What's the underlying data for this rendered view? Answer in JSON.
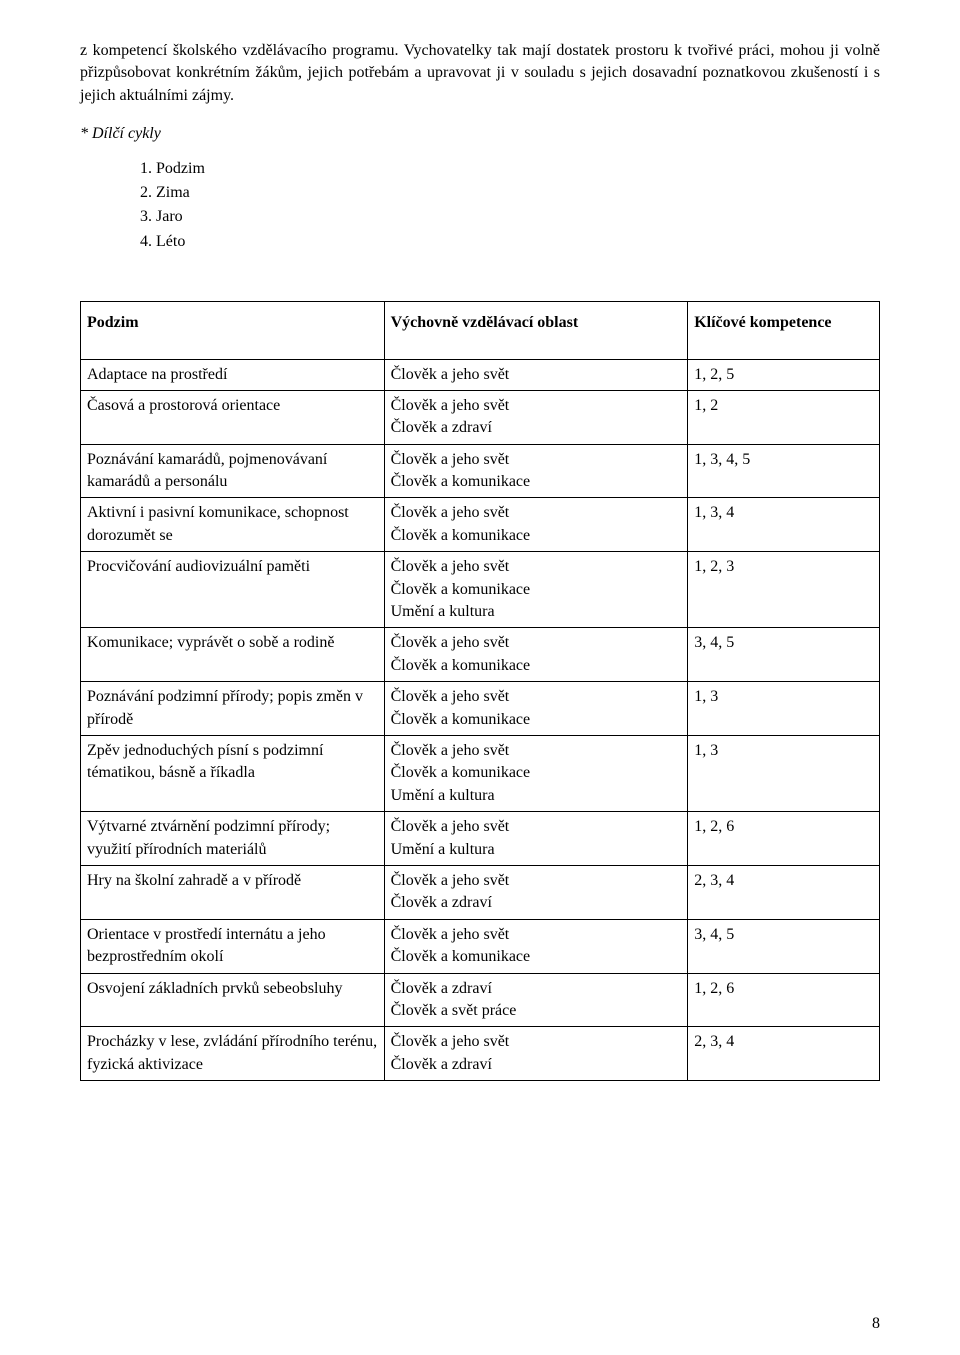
{
  "intro_text": "z kompetencí školského vzdělávacího programu. Vychovatelky tak mají dostatek prostoru k tvořivé práci, mohou ji volně přizpůsobovat konkrétním žákům, jejich potřebám a upravovat ji v souladu s jejich dosavadní poznatkovou zkušeností i s jejich aktuálními zájmy.",
  "subheading": "* Dílčí cykly",
  "cycles": [
    {
      "num": "1.",
      "label": "Podzim"
    },
    {
      "num": "2.",
      "label": "Zima"
    },
    {
      "num": "3.",
      "label": "Jaro"
    },
    {
      "num": "4.",
      "label": "Léto"
    }
  ],
  "table": {
    "header": {
      "col1": "Podzim",
      "col2": "Výchovně vzdělávací oblast",
      "col3": "Klíčové kompetence"
    },
    "rows": [
      {
        "c1": [
          "Adaptace na prostředí"
        ],
        "c2": [
          "Člověk a jeho svět"
        ],
        "c3": "1, 2, 5"
      },
      {
        "c1": [
          "Časová a prostorová orientace"
        ],
        "c2": [
          "Člověk a jeho svět",
          "Člověk a zdraví"
        ],
        "c3": "1, 2"
      },
      {
        "c1": [
          "Poznávání kamarádů, pojmenovávaní kamarádů a personálu"
        ],
        "c2": [
          "Člověk a jeho svět",
          "Člověk a komunikace"
        ],
        "c3": "1, 3, 4, 5"
      },
      {
        "c1": [
          "Aktivní i pasivní komunikace, schopnost dorozumět se"
        ],
        "c2": [
          "Člověk a jeho svět",
          "Člověk a komunikace"
        ],
        "c3": "1, 3, 4"
      },
      {
        "c1": [
          "Procvičování audiovizuální paměti"
        ],
        "c2": [
          "Člověk a jeho svět",
          "Člověk a komunikace",
          "Umění a kultura"
        ],
        "c3": "1, 2, 3"
      },
      {
        "c1": [
          "Komunikace; vyprávět o sobě a rodině"
        ],
        "c2": [
          "Člověk a jeho svět",
          "Člověk a komunikace"
        ],
        "c3": "3, 4, 5"
      },
      {
        "c1": [
          "Poznávání podzimní přírody; popis změn v přírodě"
        ],
        "c2": [
          "Člověk a jeho svět",
          "Člověk a komunikace"
        ],
        "c3": "1, 3"
      },
      {
        "c1": [
          "Zpěv jednoduchých písní s podzimní tématikou, básně a říkadla"
        ],
        "c2": [
          "Člověk a jeho svět",
          "Člověk a komunikace",
          "Umění a kultura"
        ],
        "c3": "1, 3"
      },
      {
        "c1": [
          "Výtvarné ztvárnění podzimní přírody; využití přírodních materiálů"
        ],
        "c2": [
          "Člověk a jeho svět",
          "Umění a kultura"
        ],
        "c3": "1, 2, 6"
      },
      {
        "c1": [
          "Hry na školní zahradě a v přírodě"
        ],
        "c2": [
          "Člověk a jeho svět",
          "Člověk a zdraví"
        ],
        "c3": "2, 3, 4"
      },
      {
        "c1": [
          "Orientace v prostředí internátu a jeho bezprostředním okolí"
        ],
        "c2": [
          "Člověk a jeho svět",
          "Člověk a komunikace"
        ],
        "c3": "3, 4, 5"
      },
      {
        "c1": [
          "Osvojení základních prvků sebeobsluhy"
        ],
        "c2": [
          "Člověk a zdraví",
          "Člověk a svět práce"
        ],
        "c3": "1, 2, 6"
      },
      {
        "c1": [
          "Procházky v lese, zvládání přírodního terénu, fyzická aktivizace"
        ],
        "c2": [
          "Člověk a jeho svět",
          "Člověk a zdraví"
        ],
        "c3": "2, 3, 4"
      }
    ]
  },
  "page_number": "8"
}
